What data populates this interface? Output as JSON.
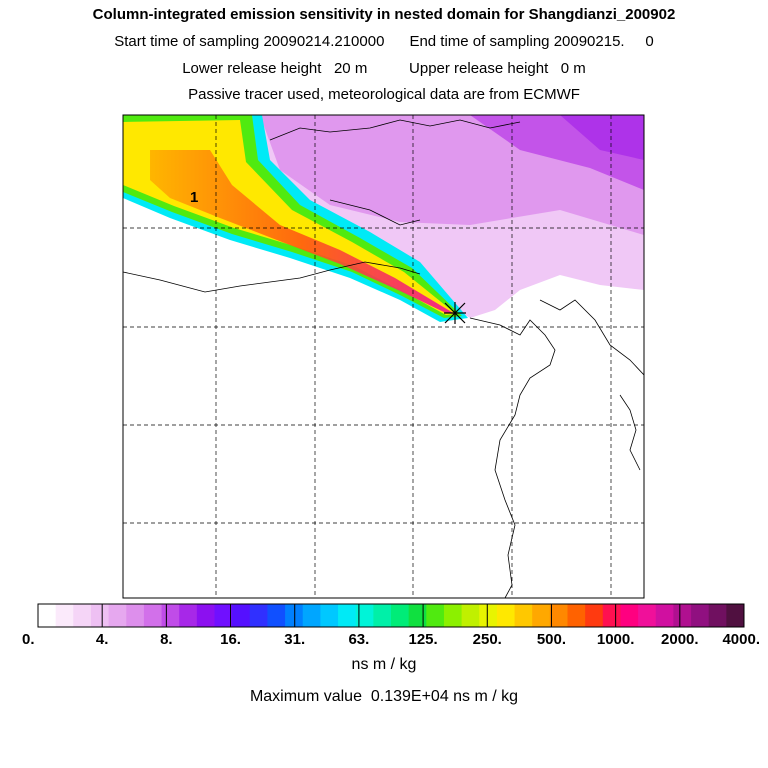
{
  "header": {
    "title": "Column-integrated emission sensitivity in nested domain for Shangdianzi_200902",
    "start_label": "Start time of sampling",
    "start_value": "20090214.210000",
    "end_label": "End time of sampling",
    "end_value": "20090215.     0",
    "lower_label": "Lower release height",
    "lower_value": "20 m",
    "upper_label": "Upper release height",
    "upper_value": "0 m",
    "tracer_note": "Passive tracer used, meteorological data are from ECMWF"
  },
  "chart_data": {
    "type": "heatmap",
    "title": "Column-integrated emission sensitivity in nested domain for Shangdianzi_200902",
    "units": "ns m / kg",
    "plume_label": "1",
    "receptor": "Shangdianzi",
    "colorbar": {
      "scale": "log",
      "tick_labels": [
        "0.",
        "4.",
        "8.",
        "16.",
        "31.",
        "63.",
        "125.",
        "250.",
        "500.",
        "1000.",
        "2000.",
        "4000."
      ],
      "colors": [
        "#ffffff",
        "#fbeafb",
        "#f5d5f7",
        "#eec0f3",
        "#e6a8ef",
        "#dd8fec",
        "#d270ea",
        "#c04ce8",
        "#a728e8",
        "#8c10f0",
        "#7010ff",
        "#5510ff",
        "#3030ff",
        "#1050ff",
        "#0080ff",
        "#00a6ff",
        "#00c8ff",
        "#00eaf6",
        "#00f4d8",
        "#00f0a8",
        "#00ec78",
        "#10e040",
        "#50ea10",
        "#8cf000",
        "#c0f000",
        "#e8f400",
        "#ffe800",
        "#ffc800",
        "#ffa800",
        "#ff8800",
        "#ff6200",
        "#ff3a10",
        "#ff1050",
        "#ff0080",
        "#f0109a",
        "#d010a0",
        "#b01090",
        "#901080",
        "#701060",
        "#501040"
      ]
    },
    "max_value_text": "Maximum value  0.139E+04 ns m / kg"
  }
}
